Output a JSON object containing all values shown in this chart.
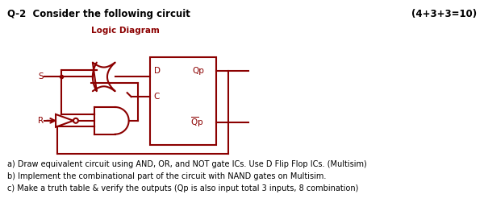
{
  "title_left": "Q-2  Consider the following circuit",
  "title_right": "(4+3+3=10)",
  "diagram_label": "Logic Diagram",
  "diagram_color": "#8B0000",
  "bg_color": "#ffffff",
  "text_color": "#000000",
  "line_a": "a) Draw equivalent circuit using AND, OR, and NOT gate ICs. Use D Flip Flop ICs. (Multisim)",
  "line_b": "b) Implement the combinational part of the circuit with NAND gates on Multisim.",
  "line_c": "c) Make a truth table & verify the outputs (Qp is also input total 3 inputs, 8 combination)"
}
